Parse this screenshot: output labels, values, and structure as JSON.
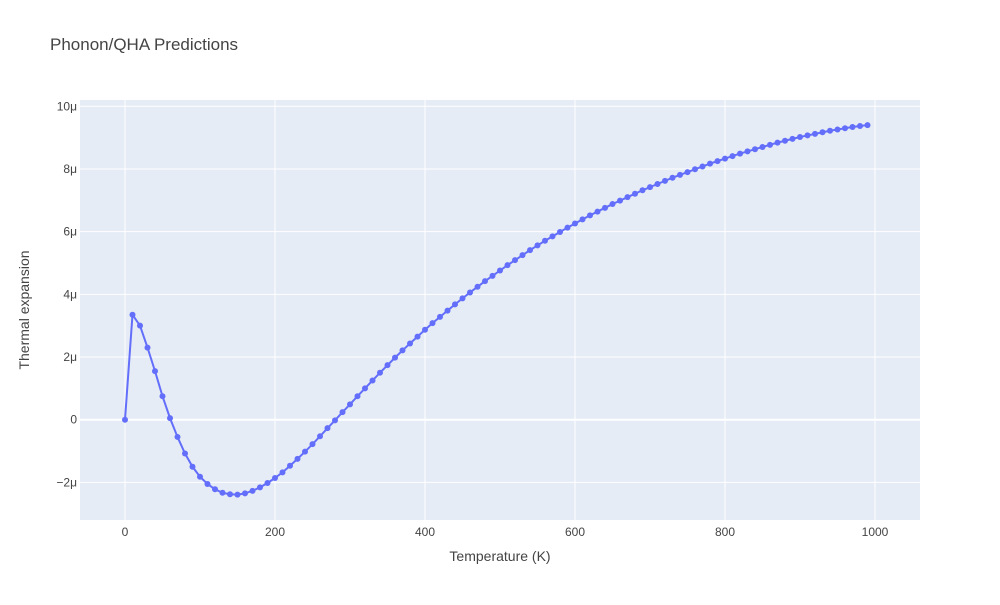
{
  "chart_data": {
    "type": "line",
    "title": "Phonon/QHA Predictions",
    "xlabel": "Temperature (K)",
    "ylabel": "Thermal expansion",
    "xlim": [
      -60,
      1060
    ],
    "ylim": [
      -3.2,
      10.2
    ],
    "y_unit_scale": "micro (1e-6)",
    "x_ticks": [
      0,
      200,
      400,
      600,
      800,
      1000
    ],
    "x_tick_labels": [
      "0",
      "200",
      "400",
      "600",
      "800",
      "1000"
    ],
    "y_ticks": [
      -2,
      0,
      2,
      4,
      6,
      8,
      10
    ],
    "y_tick_labels": [
      "−2μ",
      "0",
      "2μ",
      "4μ",
      "6μ",
      "8μ",
      "10μ"
    ],
    "grid": true,
    "legend": "none",
    "colors": {
      "line": "#636efa",
      "plot_bg": "#e5ecf6",
      "grid": "#ffffff",
      "text": "#444444",
      "title": "#444444"
    },
    "series": [
      {
        "x": [
          0,
          10,
          20,
          30,
          40,
          50,
          60,
          70,
          80,
          90,
          100,
          110,
          120,
          130,
          140,
          150,
          160,
          170,
          180,
          190,
          200,
          210,
          220,
          230,
          240,
          250,
          260,
          270,
          280,
          290,
          300,
          310,
          320,
          330,
          340,
          350,
          360,
          370,
          380,
          390,
          400,
          410,
          420,
          430,
          440,
          450,
          460,
          470,
          480,
          490,
          500,
          510,
          520,
          530,
          540,
          550,
          560,
          570,
          580,
          590,
          600,
          610,
          620,
          630,
          640,
          650,
          660,
          670,
          680,
          690,
          700,
          710,
          720,
          730,
          740,
          750,
          760,
          770,
          780,
          790,
          800,
          810,
          820,
          830,
          840,
          850,
          860,
          870,
          880,
          890,
          900,
          910,
          920,
          930,
          940,
          950,
          960,
          970,
          980,
          990
        ],
        "y": [
          0.0,
          3.35,
          3.0,
          2.3,
          1.55,
          0.75,
          0.05,
          -0.55,
          -1.08,
          -1.5,
          -1.82,
          -2.05,
          -2.22,
          -2.33,
          -2.38,
          -2.39,
          -2.35,
          -2.27,
          -2.16,
          -2.02,
          -1.86,
          -1.68,
          -1.47,
          -1.25,
          -1.02,
          -0.78,
          -0.53,
          -0.27,
          -0.02,
          0.24,
          0.49,
          0.75,
          1.0,
          1.25,
          1.5,
          1.74,
          1.98,
          2.21,
          2.43,
          2.65,
          2.87,
          3.08,
          3.28,
          3.48,
          3.68,
          3.87,
          4.06,
          4.24,
          4.42,
          4.59,
          4.76,
          4.93,
          5.09,
          5.25,
          5.41,
          5.56,
          5.71,
          5.85,
          5.99,
          6.13,
          6.26,
          6.39,
          6.52,
          6.64,
          6.76,
          6.88,
          6.99,
          7.1,
          7.21,
          7.32,
          7.42,
          7.52,
          7.62,
          7.72,
          7.81,
          7.9,
          7.99,
          8.08,
          8.17,
          8.25,
          8.33,
          8.41,
          8.49,
          8.56,
          8.63,
          8.7,
          8.77,
          8.84,
          8.9,
          8.96,
          9.02,
          9.07,
          9.12,
          9.17,
          9.22,
          9.26,
          9.3,
          9.34,
          9.37,
          9.4
        ]
      }
    ]
  }
}
